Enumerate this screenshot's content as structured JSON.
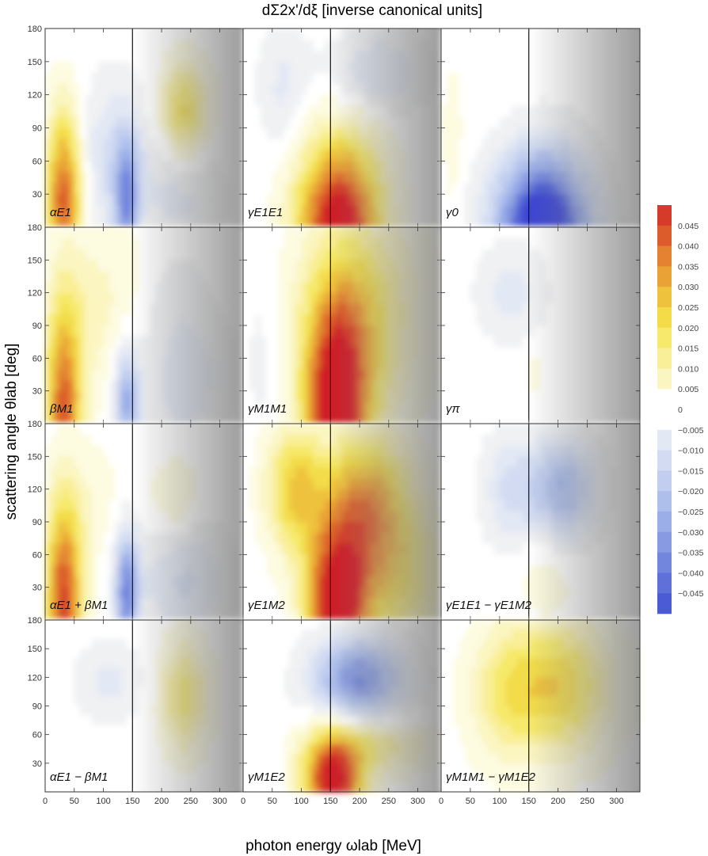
{
  "chart_data": {
    "type": "heatmap",
    "title": "dΣ2x'/dξ [inverse canonical units]",
    "xlabel": "photon energy ωlab [MeV]",
    "ylabel": "scattering angle θlab [deg]",
    "xlim": [
      0,
      340
    ],
    "ylim": [
      0,
      180
    ],
    "xticks": [
      0,
      50,
      100,
      150,
      200,
      250,
      300
    ],
    "yticks": [
      30,
      60,
      90,
      120,
      150,
      180
    ],
    "grid": false,
    "vertical_line_x": 150,
    "colorbar": {
      "position": "right",
      "range": [
        -0.05,
        0.05
      ],
      "ticks": [
        "0.045",
        "0.040",
        "0.035",
        "0.030",
        "0.025",
        "0.020",
        "0.015",
        "0.010",
        "0.005",
        "0",
        "−0.005",
        "−0.010",
        "−0.015",
        "−0.020",
        "−0.025",
        "−0.030",
        "−0.035",
        "−0.040",
        "−0.045"
      ],
      "tick_values": [
        0.045,
        0.04,
        0.035,
        0.03,
        0.025,
        0.02,
        0.015,
        0.01,
        0.005,
        0,
        -0.005,
        -0.01,
        -0.015,
        -0.02,
        -0.025,
        -0.03,
        -0.035,
        -0.04,
        -0.045
      ]
    },
    "panels": [
      {
        "label": "αE1",
        "blobs": [
          {
            "x": 32,
            "y": 25,
            "sx": 22,
            "sy": 55,
            "a": 0.042
          },
          {
            "x": 140,
            "y": 25,
            "sx": 14,
            "sy": 40,
            "a": -0.03
          },
          {
            "x": 118,
            "y": 60,
            "sx": 45,
            "sy": 50,
            "a": -0.012
          },
          {
            "x": 240,
            "y": 105,
            "sx": 30,
            "sy": 30,
            "a": 0.022
          },
          {
            "x": 240,
            "y": 30,
            "sx": 50,
            "sy": 35,
            "a": -0.008
          }
        ]
      },
      {
        "label": "γE1E1",
        "blobs": [
          {
            "x": 165,
            "y": 0,
            "sx": 50,
            "sy": 55,
            "a": 0.055
          },
          {
            "x": 230,
            "y": 140,
            "sx": 60,
            "sy": 25,
            "a": -0.012
          },
          {
            "x": 70,
            "y": 125,
            "sx": 30,
            "sy": 40,
            "a": -0.008
          }
        ]
      },
      {
        "label": "γ0",
        "blobs": [
          {
            "x": 175,
            "y": 0,
            "sx": 55,
            "sy": 45,
            "a": -0.06
          },
          {
            "x": 20,
            "y": 80,
            "sx": 12,
            "sy": 45,
            "a": 0.006
          }
        ]
      },
      {
        "label": "βM1",
        "blobs": [
          {
            "x": 32,
            "y": 10,
            "sx": 22,
            "sy": 70,
            "a": 0.04
          },
          {
            "x": 90,
            "y": 110,
            "sx": 60,
            "sy": 60,
            "a": 0.008
          },
          {
            "x": 140,
            "y": 20,
            "sx": 15,
            "sy": 35,
            "a": -0.028
          },
          {
            "x": 240,
            "y": 40,
            "sx": 55,
            "sy": 45,
            "a": -0.01
          },
          {
            "x": 220,
            "y": 120,
            "sx": 40,
            "sy": 30,
            "a": -0.004
          }
        ]
      },
      {
        "label": "γM1M1",
        "blobs": [
          {
            "x": 160,
            "y": 10,
            "sx": 38,
            "sy": 70,
            "a": 0.055
          },
          {
            "x": 200,
            "y": 100,
            "sx": 70,
            "sy": 70,
            "a": 0.02
          },
          {
            "x": 30,
            "y": 60,
            "sx": 20,
            "sy": 60,
            "a": -0.004
          }
        ]
      },
      {
        "label": "γπ",
        "blobs": [
          {
            "x": 120,
            "y": 120,
            "sx": 40,
            "sy": 30,
            "a": -0.009
          },
          {
            "x": 160,
            "y": 50,
            "sx": 10,
            "sy": 20,
            "a": 0.004
          }
        ]
      },
      {
        "label": "αE1 + βM1",
        "blobs": [
          {
            "x": 32,
            "y": 15,
            "sx": 22,
            "sy": 65,
            "a": 0.045
          },
          {
            "x": 140,
            "y": 25,
            "sx": 14,
            "sy": 40,
            "a": -0.035
          },
          {
            "x": 240,
            "y": 35,
            "sx": 55,
            "sy": 40,
            "a": -0.012
          },
          {
            "x": 225,
            "y": 110,
            "sx": 30,
            "sy": 25,
            "a": 0.008
          },
          {
            "x": 80,
            "y": 110,
            "sx": 40,
            "sy": 40,
            "a": 0.005
          }
        ]
      },
      {
        "label": "γE1M2",
        "blobs": [
          {
            "x": 160,
            "y": 10,
            "sx": 35,
            "sy": 50,
            "a": 0.055
          },
          {
            "x": 90,
            "y": 120,
            "sx": 35,
            "sy": 40,
            "a": 0.025
          },
          {
            "x": 210,
            "y": 110,
            "sx": 50,
            "sy": 45,
            "a": 0.03
          },
          {
            "x": 260,
            "y": 40,
            "sx": 70,
            "sy": 50,
            "a": 0.02
          }
        ]
      },
      {
        "label": "γE1E1 − γE1M2",
        "blobs": [
          {
            "x": 210,
            "y": 120,
            "sx": 40,
            "sy": 32,
            "a": -0.025
          },
          {
            "x": 120,
            "y": 120,
            "sx": 35,
            "sy": 35,
            "a": -0.012
          },
          {
            "x": 180,
            "y": 40,
            "sx": 35,
            "sy": 30,
            "a": 0.005
          }
        ]
      },
      {
        "label": "αE1 − βM1",
        "blobs": [
          {
            "x": 110,
            "y": 115,
            "sx": 40,
            "sy": 30,
            "a": -0.008
          },
          {
            "x": 240,
            "y": 100,
            "sx": 30,
            "sy": 40,
            "a": 0.018
          }
        ]
      },
      {
        "label": "γM1E2",
        "blobs": [
          {
            "x": 200,
            "y": 118,
            "sx": 55,
            "sy": 30,
            "a": -0.035
          },
          {
            "x": 155,
            "y": 10,
            "sx": 35,
            "sy": 35,
            "a": 0.055
          },
          {
            "x": 230,
            "y": 50,
            "sx": 70,
            "sy": 20,
            "a": 0.015
          }
        ]
      },
      {
        "label": "γM1M1 − γM1E2",
        "blobs": [
          {
            "x": 190,
            "y": 110,
            "sx": 70,
            "sy": 50,
            "a": 0.025
          },
          {
            "x": 100,
            "y": 100,
            "sx": 40,
            "sy": 50,
            "a": 0.008
          }
        ]
      }
    ]
  }
}
